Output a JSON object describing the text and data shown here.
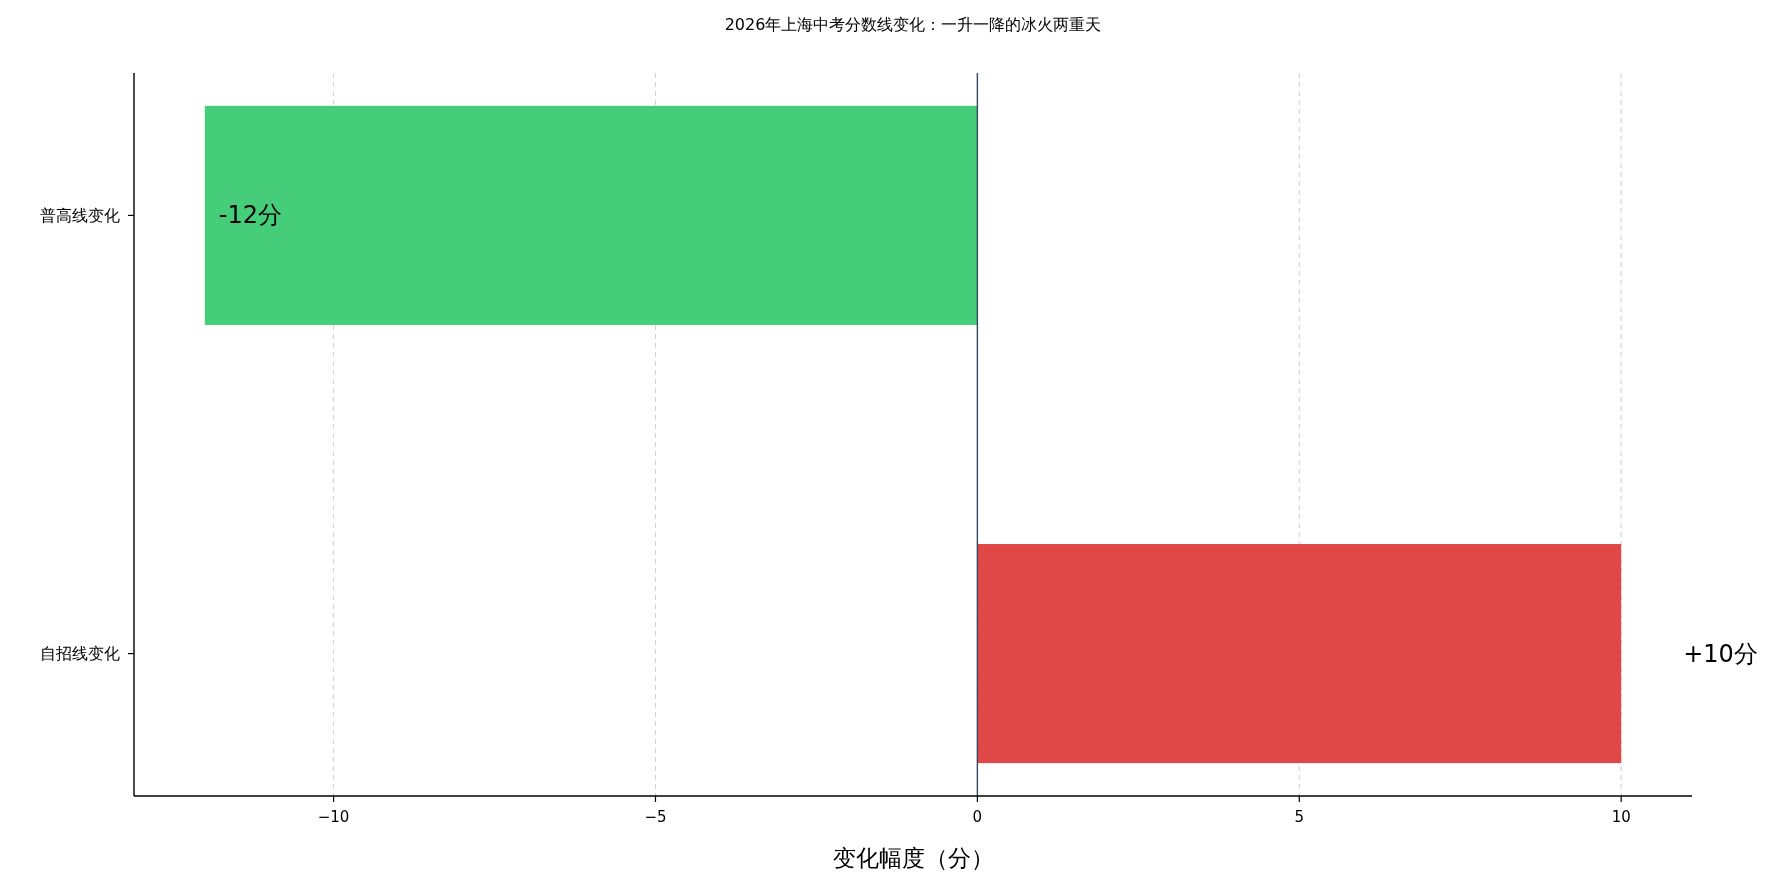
{
  "chart_data": {
    "type": "bar",
    "orientation": "horizontal",
    "title": "2026年上海中考分数线变化：一升一降的冰火两重天",
    "xlabel": "变化幅度（分）",
    "categories": [
      "普高线变化",
      "自招线变化"
    ],
    "values": [
      -12,
      10
    ],
    "colors": [
      "#45cd7a",
      "#e04848"
    ],
    "value_labels": [
      "-12分",
      "+10分"
    ],
    "xlim": [
      -13.1,
      11.1
    ],
    "xticks": [
      {
        "value": -10,
        "label": "−10"
      },
      {
        "value": -5,
        "label": "−5"
      },
      0,
      5,
      10
    ],
    "grid": "x",
    "ref_lines": [
      {
        "axis": "x",
        "value": 0,
        "color": "#34495e"
      }
    ]
  }
}
